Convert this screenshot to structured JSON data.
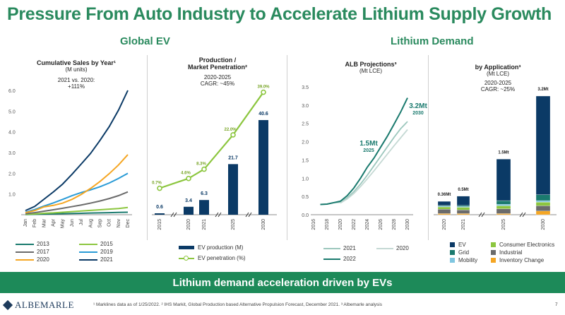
{
  "title": "Pressure From Auto Industry to Accelerate Lithium Supply Growth",
  "sections": {
    "global_ev": "Global EV",
    "lithium_demand": "Lithium Demand"
  },
  "banner": "Lithium demand acceleration driven by EVs",
  "footer": {
    "logo": "ALBEMARLE",
    "note": "¹ Marklines data as of 1/25/2022. ² IHS Markit, Global Production based Alternative Propulsion Forecast, December 2021. ³ Albemarle analysis",
    "page": "7"
  },
  "colors": {
    "green": "#2a8a5e",
    "navy": "#0b3a66",
    "lime": "#8cc63f",
    "teal": "#1a7a6e",
    "light_blue": "#7fc6e0",
    "gray": "#6b6b6b",
    "orange": "#f5a623"
  },
  "chart_text": {
    "c1": {
      "title": "Cumulative Sales by Year¹",
      "sub1": "(M units)",
      "sub2": "2021 vs. 2020:",
      "sub3": "+111%"
    },
    "c2": {
      "title1": "Production /",
      "title2": "Market Penetration²",
      "sub1": "2020-2025",
      "sub2": "CAGR: ~45%"
    },
    "c3": {
      "title": "ALB Projections³",
      "sub1": "(Mt LCE)",
      "ann1": "1.5Mt",
      "ann1_year": "2025",
      "ann2": "3.2Mt",
      "ann2_year": "2030"
    },
    "c4": {
      "title": "by Application³",
      "sub1": "(Mt LCE)",
      "sub2": "2020-2025",
      "sub3": "CAGR: ~25%"
    }
  },
  "chart_data": [
    {
      "type": "line",
      "title": "Cumulative Sales by Year¹",
      "ylabel": "(M units)",
      "x": [
        "Jan",
        "Feb",
        "Mar",
        "Apr",
        "May",
        "Jun",
        "Jul",
        "Aug",
        "Sep",
        "Oct",
        "Nov",
        "Dec"
      ],
      "ylim": [
        0,
        6.0
      ],
      "yticks": [
        "6.0",
        "5.0",
        "4.0",
        "3.0",
        "2.0",
        "1.0"
      ],
      "series": [
        {
          "name": "2013",
          "color": "#1a7a6e",
          "values": [
            0.01,
            0.02,
            0.03,
            0.04,
            0.05,
            0.06,
            0.07,
            0.08,
            0.09,
            0.1,
            0.11,
            0.12
          ]
        },
        {
          "name": "2015",
          "color": "#8cc63f",
          "values": [
            0.02,
            0.04,
            0.07,
            0.09,
            0.12,
            0.15,
            0.18,
            0.21,
            0.24,
            0.27,
            0.3,
            0.35
          ]
        },
        {
          "name": "2017",
          "color": "#6b6b6b",
          "values": [
            0.05,
            0.1,
            0.17,
            0.24,
            0.31,
            0.39,
            0.47,
            0.56,
            0.66,
            0.78,
            0.92,
            1.1
          ]
        },
        {
          "name": "2019",
          "color": "#2a9bd6",
          "values": [
            0.12,
            0.25,
            0.42,
            0.57,
            0.74,
            0.92,
            1.07,
            1.2,
            1.35,
            1.53,
            1.75,
            2.0
          ]
        },
        {
          "name": "2020",
          "color": "#f5a623",
          "values": [
            0.1,
            0.2,
            0.38,
            0.45,
            0.56,
            0.74,
            0.98,
            1.27,
            1.6,
            1.98,
            2.4,
            2.9
          ]
        },
        {
          "name": "2021",
          "color": "#0b3a66",
          "values": [
            0.2,
            0.4,
            0.75,
            1.1,
            1.48,
            1.95,
            2.45,
            2.96,
            3.58,
            4.25,
            5.05,
            6.0
          ]
        }
      ]
    },
    {
      "type": "bar",
      "title": "Production / Market Penetration²",
      "categories": [
        "2015",
        "2020",
        "2021",
        "2025",
        "2030"
      ],
      "series": [
        {
          "name": "EV production (M)",
          "color": "#0b3a66",
          "values": [
            0.6,
            3.4,
            6.3,
            21.7,
            40.6
          ],
          "labels": [
            "0.6",
            "3.4",
            "6.3",
            "21.7",
            "40.6"
          ]
        },
        {
          "name": "EV penetration (%)",
          "color": "#8cc63f",
          "values": [
            0.7,
            4.6,
            8.3,
            22.0,
            39.0
          ],
          "labels": [
            "0.7%",
            "4.6%",
            "8.3%",
            "22.0%",
            "39.0%"
          ]
        }
      ]
    },
    {
      "type": "line",
      "title": "ALB Projections³",
      "ylabel": "(Mt LCE)",
      "ylim": [
        0,
        3.5
      ],
      "yticks": [
        "3.5",
        "3.0",
        "2.5",
        "2.0",
        "1.5",
        "1.0",
        "0.5",
        "0.0"
      ],
      "xticks": [
        "2016",
        "2018",
        "2020",
        "2022",
        "2024",
        "2026",
        "2028",
        "2030"
      ],
      "series": [
        {
          "name": "2021",
          "color": "#9cc7bd",
          "x": [
            2017,
            2018,
            2019,
            2020,
            2021,
            2022,
            2023,
            2024,
            2025,
            2026,
            2027,
            2028,
            2029,
            2030
          ],
          "values": [
            0.28,
            0.29,
            0.33,
            0.34,
            0.46,
            0.63,
            0.84,
            1.08,
            1.34,
            1.6,
            1.86,
            2.12,
            2.36,
            2.55
          ]
        },
        {
          "name": "2020",
          "color": "#c5d9d4",
          "x": [
            2020,
            2021,
            2022,
            2023,
            2024,
            2025,
            2026,
            2027,
            2028,
            2029,
            2030
          ],
          "values": [
            0.32,
            0.43,
            0.58,
            0.77,
            0.98,
            1.2,
            1.43,
            1.66,
            1.89,
            2.11,
            2.33
          ]
        },
        {
          "name": "2022",
          "color": "#1a7a6e",
          "x": [
            2017,
            2018,
            2019,
            2020,
            2021,
            2022,
            2023,
            2024,
            2025,
            2026,
            2027,
            2028,
            2029,
            2030
          ],
          "values": [
            0.28,
            0.29,
            0.33,
            0.37,
            0.52,
            0.73,
            1.0,
            1.3,
            1.55,
            1.85,
            2.15,
            2.48,
            2.82,
            3.2
          ]
        }
      ]
    },
    {
      "type": "bar",
      "title": "by Application³",
      "ylabel": "(Mt LCE)",
      "categories": [
        "2020",
        "2021",
        "2025",
        "2030"
      ],
      "totals": [
        "0.36Mt",
        "0.5Mt",
        "1.5Mt",
        "3.2Mt"
      ],
      "series": [
        {
          "name": "EV",
          "color": "#0b3a66",
          "values": [
            0.11,
            0.25,
            1.12,
            2.66
          ]
        },
        {
          "name": "Grid",
          "color": "#1a7a6e",
          "values": [
            0.02,
            0.03,
            0.1,
            0.16
          ]
        },
        {
          "name": "Mobility",
          "color": "#7fc6e0",
          "values": [
            0.02,
            0.02,
            0.04,
            0.04
          ]
        },
        {
          "name": "Consumer Electronics",
          "color": "#8cc63f",
          "values": [
            0.06,
            0.07,
            0.08,
            0.1
          ]
        },
        {
          "name": "Industrial",
          "color": "#6b6b6b",
          "values": [
            0.12,
            0.1,
            0.13,
            0.14
          ]
        },
        {
          "name": "Inventory Change",
          "color": "#f5a623",
          "values": [
            0.03,
            0.03,
            0.03,
            0.1
          ]
        }
      ]
    }
  ]
}
